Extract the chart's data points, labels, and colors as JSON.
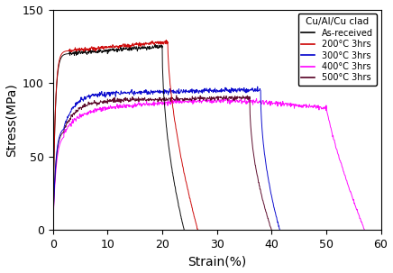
{
  "title": "",
  "xlabel": "Strain(%)",
  "ylabel": "Stress(MPa)",
  "xlim": [
    0,
    60
  ],
  "ylim": [
    0,
    150
  ],
  "xticks": [
    0,
    10,
    20,
    30,
    40,
    50,
    60
  ],
  "yticks": [
    0,
    50,
    100,
    150
  ],
  "legend_title": "Cu/Al/Cu clad",
  "series": [
    {
      "label": "As-received",
      "color": "#000000",
      "type": "as_received"
    },
    {
      "label": "200°C 3hrs",
      "color": "#cc0000",
      "type": "200"
    },
    {
      "label": "300°C 3hrs",
      "color": "#0000cc",
      "type": "300"
    },
    {
      "label": "400°C 3hrs",
      "color": "#ff00ff",
      "type": "400"
    },
    {
      "label": "500°C 3hrs",
      "color": "#550022",
      "type": "500"
    }
  ],
  "background_color": "#ffffff",
  "figsize": [
    4.36,
    3.03
  ],
  "dpi": 100
}
